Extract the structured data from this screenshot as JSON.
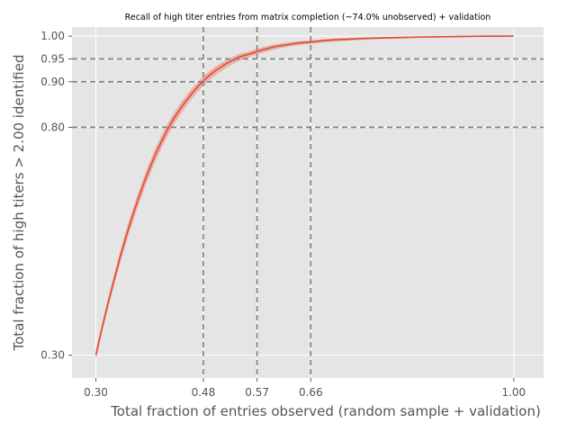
{
  "chart_data": {
    "type": "line",
    "title": "Recall of high titer entries from matrix completion (~74.0% unobserved) + validation",
    "xlabel": "Total fraction of entries observed (random sample + validation)",
    "ylabel": "Total fraction of high titers > 2.00 identified",
    "xlim": [
      0.26,
      1.05
    ],
    "ylim": [
      0.25,
      1.02
    ],
    "grid": true,
    "background": "#E5E5E5",
    "x_ticks": [
      0.3,
      0.48,
      0.57,
      0.66,
      1.0
    ],
    "x_tick_labels": [
      "0.30",
      "0.48",
      "0.57",
      "0.66",
      "1.00"
    ],
    "y_ticks": [
      0.3,
      0.8,
      0.9,
      0.95,
      1.0
    ],
    "y_tick_labels": [
      "0.30",
      "0.80",
      "0.90",
      "0.95",
      "1.00"
    ],
    "vlines": [
      0.48,
      0.57,
      0.66
    ],
    "hlines": [
      0.8,
      0.9,
      0.95
    ],
    "reference_line_color": "#808080",
    "series": [
      {
        "color": "#E24A33",
        "band_color": "#E8A89C",
        "x": [
          0.3,
          0.31,
          0.32,
          0.33,
          0.34,
          0.35,
          0.36,
          0.37,
          0.38,
          0.39,
          0.4,
          0.41,
          0.42,
          0.43,
          0.44,
          0.45,
          0.46,
          0.47,
          0.48,
          0.49,
          0.5,
          0.52,
          0.54,
          0.56,
          0.58,
          0.6,
          0.62,
          0.64,
          0.66,
          0.68,
          0.7,
          0.72,
          0.75,
          0.78,
          0.81,
          0.84,
          0.87,
          0.9,
          0.93,
          0.96,
          0.98,
          1.0
        ],
        "y": [
          0.3,
          0.358,
          0.412,
          0.463,
          0.512,
          0.558,
          0.6,
          0.639,
          0.676,
          0.71,
          0.741,
          0.769,
          0.795,
          0.818,
          0.838,
          0.856,
          0.873,
          0.888,
          0.902,
          0.914,
          0.924,
          0.941,
          0.954,
          0.962,
          0.97,
          0.977,
          0.981,
          0.985,
          0.987,
          0.99,
          0.992,
          0.993,
          0.995,
          0.996,
          0.997,
          0.998,
          0.9985,
          0.999,
          0.9995,
          0.9998,
          0.9999,
          1.0
        ],
        "y_lower": [
          0.29,
          0.348,
          0.4,
          0.45,
          0.498,
          0.543,
          0.585,
          0.624,
          0.661,
          0.695,
          0.726,
          0.755,
          0.781,
          0.805,
          0.825,
          0.844,
          0.861,
          0.877,
          0.891,
          0.903,
          0.914,
          0.932,
          0.946,
          0.955,
          0.964,
          0.971,
          0.976,
          0.98,
          0.983,
          0.986,
          0.988,
          0.99,
          0.992,
          0.994,
          0.995,
          0.996,
          0.997,
          0.9975,
          0.998,
          0.999,
          0.9995,
          1.0
        ],
        "y_upper": [
          0.31,
          0.368,
          0.423,
          0.475,
          0.525,
          0.572,
          0.614,
          0.653,
          0.69,
          0.724,
          0.755,
          0.783,
          0.808,
          0.83,
          0.85,
          0.867,
          0.884,
          0.898,
          0.912,
          0.923,
          0.933,
          0.949,
          0.961,
          0.968,
          0.976,
          0.982,
          0.986,
          0.989,
          0.991,
          0.993,
          0.995,
          0.996,
          0.997,
          0.998,
          0.999,
          0.9993,
          0.9995,
          0.9997,
          0.9999,
          1.0,
          1.0,
          1.0
        ]
      }
    ]
  }
}
